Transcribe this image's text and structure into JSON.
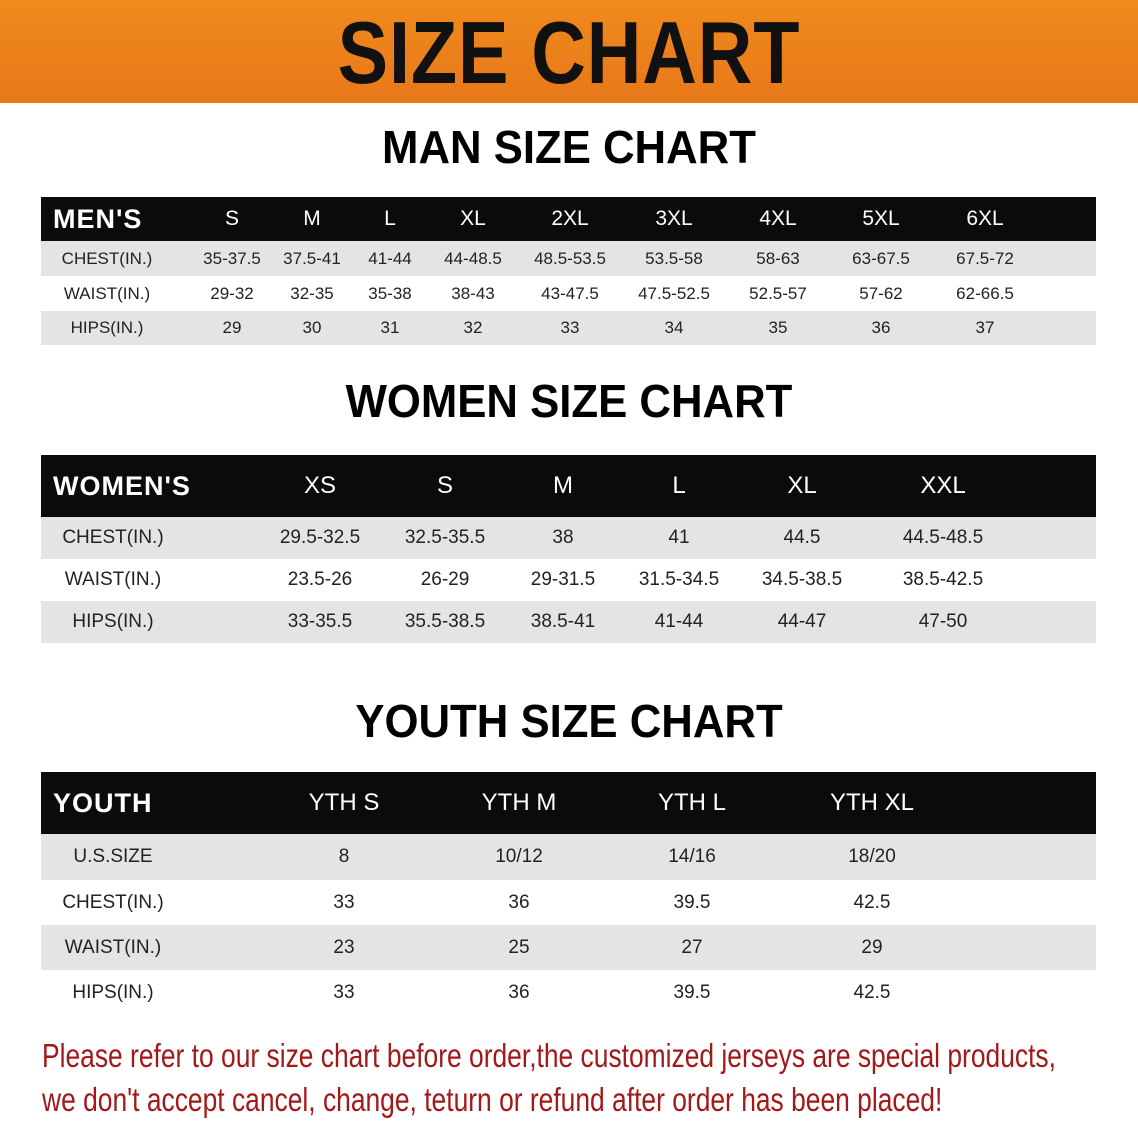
{
  "banner_title": "SIZE CHART",
  "men": {
    "title": "MAN SIZE CHART",
    "header": [
      "MEN'S",
      "S",
      "M",
      "L",
      "XL",
      "2XL",
      "3XL",
      "4XL",
      "5XL",
      "6XL"
    ],
    "rows": [
      [
        "CHEST(IN.)",
        "35-37.5",
        "37.5-41",
        "41-44",
        "44-48.5",
        "48.5-53.5",
        "53.5-58",
        "58-63",
        "63-67.5",
        "67.5-72"
      ],
      [
        "WAIST(IN.)",
        "29-32",
        "32-35",
        "35-38",
        "38-43",
        "43-47.5",
        "47.5-52.5",
        "52.5-57",
        "57-62",
        "62-66.5"
      ],
      [
        "HIPS(IN.)",
        "29",
        "30",
        "31",
        "32",
        "33",
        "34",
        "35",
        "36",
        "37"
      ]
    ]
  },
  "women": {
    "title": "WOMEN SIZE CHART",
    "header": [
      "WOMEN'S",
      "XS",
      "S",
      "M",
      "L",
      "XL",
      "XXL"
    ],
    "rows": [
      [
        "CHEST(IN.)",
        "29.5-32.5",
        "32.5-35.5",
        "38",
        "41",
        "44.5",
        "44.5-48.5"
      ],
      [
        "WAIST(IN.)",
        "23.5-26",
        "26-29",
        "29-31.5",
        "31.5-34.5",
        "34.5-38.5",
        "38.5-42.5"
      ],
      [
        "HIPS(IN.)",
        "33-35.5",
        "35.5-38.5",
        "38.5-41",
        "41-44",
        "44-47",
        "47-50"
      ]
    ]
  },
  "youth": {
    "title": "YOUTH SIZE CHART",
    "header": [
      "YOUTH",
      "YTH S",
      "YTH M",
      "YTH L",
      "YTH XL"
    ],
    "rows": [
      [
        "U.S.SIZE",
        "8",
        "10/12",
        "14/16",
        "18/20"
      ],
      [
        "CHEST(IN.)",
        "33",
        "36",
        "39.5",
        "42.5"
      ],
      [
        "WAIST(IN.)",
        "23",
        "25",
        "27",
        "29"
      ],
      [
        "HIPS(IN.)",
        "33",
        "36",
        "39.5",
        "42.5"
      ]
    ]
  },
  "notice": [
    "Please refer to our size chart before order,the customized jerseys are special products,",
    "we don't accept cancel, change, teturn or refund after order has been placed!"
  ],
  "colors": {
    "banner": "#ec7f1b",
    "header": "#0b0b0b",
    "stripe": "#e4e4e4",
    "notice": "#a31919"
  }
}
